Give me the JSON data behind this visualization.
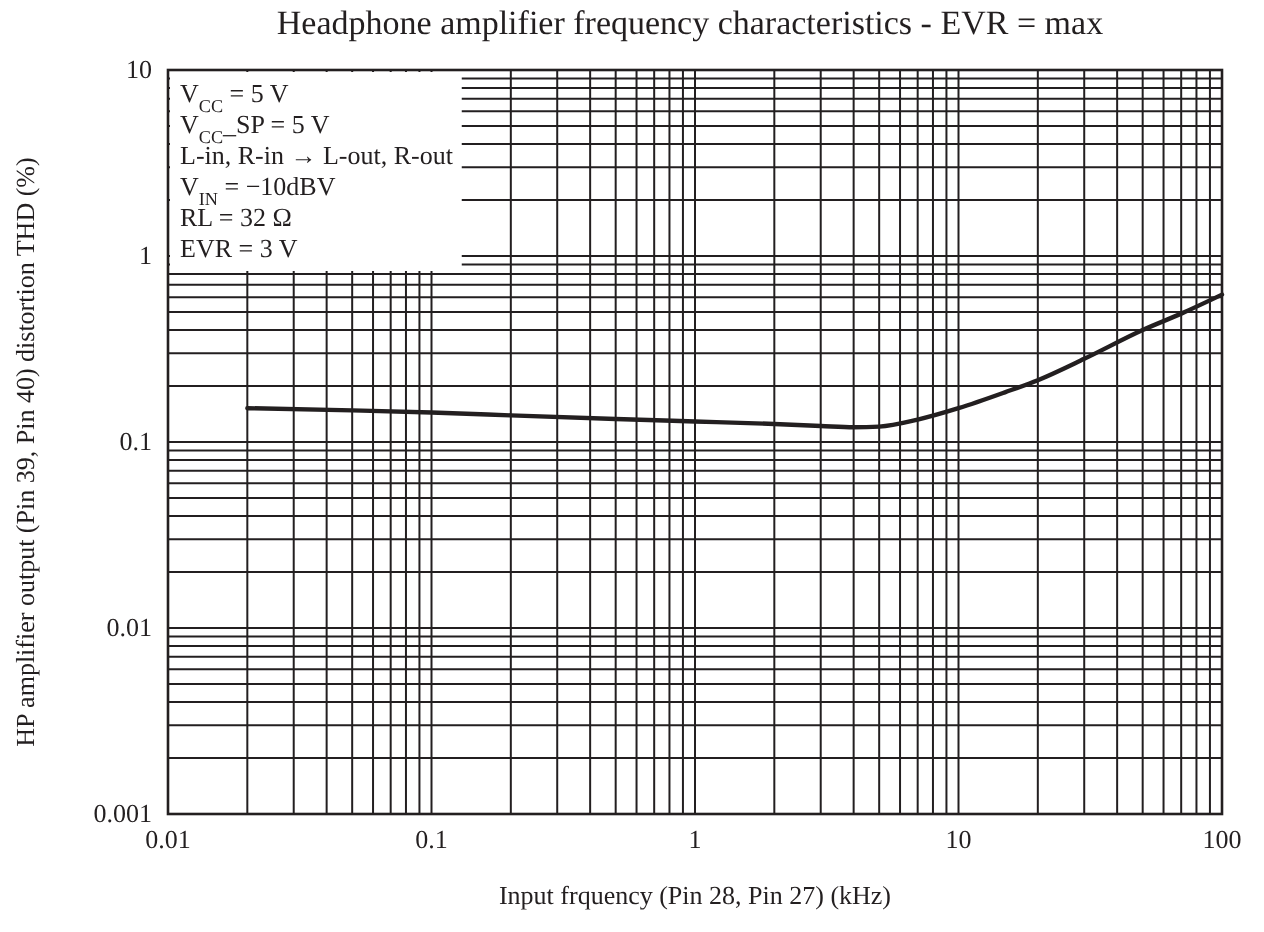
{
  "chart_data": {
    "type": "line",
    "title": "Headphone amplifier frequency characteristics - EVR = max",
    "xlabel": "Input frquency (Pin 28, Pin 27)  (kHz)",
    "ylabel": "HP amplifier output (Pin 39, Pin 40) distortion THD  (%)",
    "annotations": [
      "V$_{CC}$ = 5 V",
      "V$_{CC}$_SP = 5 V",
      "L-in, R-in → L-out, R-out",
      "V$_{IN}$ = −10dBV",
      "RL = 32 Ω",
      "EVR = 3 V"
    ],
    "log": "xy",
    "grid": true,
    "xlim": [
      0.01,
      100
    ],
    "ylim": [
      0.001,
      10
    ],
    "xticks": [
      0.01,
      {
        "value": 0.02,
        "label": null
      },
      {
        "value": 0.03,
        "label": null
      },
      {
        "value": 0.04,
        "label": null
      },
      {
        "value": 0.05,
        "label": null
      },
      {
        "value": 0.06,
        "label": null
      },
      {
        "value": 0.07,
        "label": null
      },
      {
        "value": 0.08,
        "label": null
      },
      {
        "value": 0.09,
        "label": null
      },
      0.1,
      {
        "value": 0.2,
        "label": null
      },
      {
        "value": 0.3,
        "label": null
      },
      {
        "value": 0.4,
        "label": null
      },
      {
        "value": 0.5,
        "label": null
      },
      {
        "value": 0.6,
        "label": null
      },
      {
        "value": 0.7,
        "label": null
      },
      {
        "value": 0.8,
        "label": null
      },
      {
        "value": 0.9,
        "label": null
      },
      1,
      {
        "value": 2,
        "label": null
      },
      {
        "value": 3,
        "label": null
      },
      {
        "value": 4,
        "label": null
      },
      {
        "value": 5,
        "label": null
      },
      {
        "value": 6,
        "label": null
      },
      {
        "value": 7,
        "label": null
      },
      {
        "value": 8,
        "label": null
      },
      {
        "value": 9,
        "label": null
      },
      10,
      {
        "value": 20,
        "label": null
      },
      {
        "value": 30,
        "label": null
      },
      {
        "value": 40,
        "label": null
      },
      {
        "value": 50,
        "label": null
      },
      {
        "value": 60,
        "label": null
      },
      {
        "value": 70,
        "label": null
      },
      {
        "value": 80,
        "label": null
      },
      {
        "value": 90,
        "label": null
      },
      100
    ],
    "yticks": [
      0.001,
      {
        "value": 0.002,
        "label": null
      },
      {
        "value": 0.003,
        "label": null
      },
      {
        "value": 0.004,
        "label": null
      },
      {
        "value": 0.005,
        "label": null
      },
      {
        "value": 0.006,
        "label": null
      },
      {
        "value": 0.007,
        "label": null
      },
      {
        "value": 0.008,
        "label": null
      },
      {
        "value": 0.009,
        "label": null
      },
      0.01,
      {
        "value": 0.02,
        "label": null
      },
      {
        "value": 0.03,
        "label": null
      },
      {
        "value": 0.04,
        "label": null
      },
      {
        "value": 0.05,
        "label": null
      },
      {
        "value": 0.06,
        "label": null
      },
      {
        "value": 0.07,
        "label": null
      },
      {
        "value": 0.08,
        "label": null
      },
      {
        "value": 0.09,
        "label": null
      },
      0.1,
      {
        "value": 0.2,
        "label": null
      },
      {
        "value": 0.3,
        "label": null
      },
      {
        "value": 0.4,
        "label": null
      },
      {
        "value": 0.5,
        "label": null
      },
      {
        "value": 0.6,
        "label": null
      },
      {
        "value": 0.7,
        "label": null
      },
      {
        "value": 0.8,
        "label": null
      },
      {
        "value": 0.9,
        "label": null
      },
      1,
      {
        "value": 2,
        "label": null
      },
      {
        "value": 3,
        "label": null
      },
      {
        "value": 4,
        "label": null
      },
      {
        "value": 5,
        "label": null
      },
      {
        "value": 6,
        "label": null
      },
      {
        "value": 7,
        "label": null
      },
      {
        "value": 8,
        "label": null
      },
      {
        "value": 9,
        "label": null
      },
      10
    ],
    "series": [
      {
        "color": "#231f20",
        "x": [
          0.02,
          0.05,
          0.1,
          0.2,
          0.5,
          1,
          2,
          3,
          4,
          5,
          7,
          10,
          15,
          20,
          30,
          50,
          70,
          100
        ],
        "values": [
          0.152,
          0.148,
          0.144,
          0.139,
          0.133,
          0.129,
          0.125,
          0.122,
          0.12,
          0.121,
          0.132,
          0.152,
          0.185,
          0.215,
          0.28,
          0.4,
          0.49,
          0.62
        ]
      }
    ]
  }
}
